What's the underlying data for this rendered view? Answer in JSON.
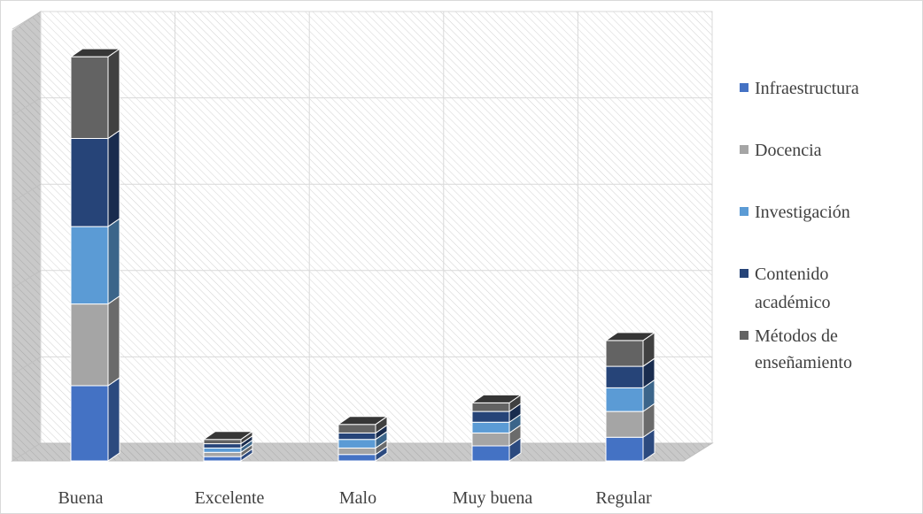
{
  "chart_data": {
    "type": "bar",
    "stacked": true,
    "three_d": true,
    "categories": [
      "Buena",
      "Excelente",
      "Malo",
      "Muy buena",
      "Regular"
    ],
    "series": [
      {
        "name": "Infraestructura",
        "color": "#4472c4",
        "values": [
          17.5,
          1.0,
          1.5,
          3.5,
          5.5
        ]
      },
      {
        "name": "Docencia",
        "color": "#a5a5a5",
        "values": [
          19.0,
          1.0,
          1.5,
          3.0,
          6.0
        ]
      },
      {
        "name": "Investigación",
        "color": "#5b9bd5",
        "values": [
          18.0,
          1.0,
          2.0,
          2.5,
          5.5
        ]
      },
      {
        "name": "Contenido académico",
        "color": "#264478",
        "values": [
          20.5,
          1.0,
          1.5,
          2.5,
          5.0
        ]
      },
      {
        "name": "Métodos de enseñamiento",
        "color": "#636363",
        "values": [
          19.0,
          1.0,
          2.0,
          2.0,
          6.0
        ]
      }
    ],
    "ylim": [
      0,
      100
    ],
    "grid": true,
    "legend_position": "right"
  }
}
